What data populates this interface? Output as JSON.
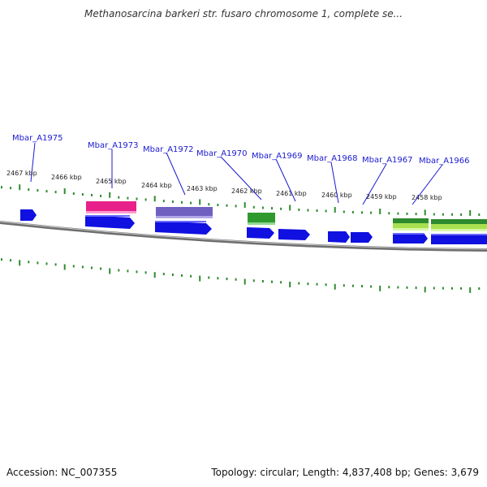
{
  "title": "Methanosarcina barkeri str. fusaro chromosome 1, complete se...",
  "footer": {
    "accession": "Accession: NC_007355",
    "summary": "Topology: circular; Length: 4,837,408 bp; Genes: 3,679"
  },
  "colors": {
    "gene_label": "#1a1ad0",
    "cds_arrow": "#1010e0",
    "tick": "#2e8b2e",
    "backbone": "#8a8a8a",
    "feature_pink": "#e8208a",
    "feature_purple": "#7060c0",
    "feature_green": "#2e9a2e",
    "feature_lime": "#a8e050"
  },
  "kbp_ticks": [
    "2467 kbp",
    "2466 kbp",
    "2465 kbp",
    "2464 kbp",
    "2463 kbp",
    "2462 kbp",
    "2461 kbp",
    "2460 kbp",
    "2459 kbp",
    "2458 kbp"
  ],
  "genes": [
    "Mbar_A1975",
    "Mbar_A1973",
    "Mbar_A1972",
    "Mbar_A1970",
    "Mbar_A1969",
    "Mbar_A1968",
    "Mbar_A1967",
    "Mbar_A1966"
  ]
}
